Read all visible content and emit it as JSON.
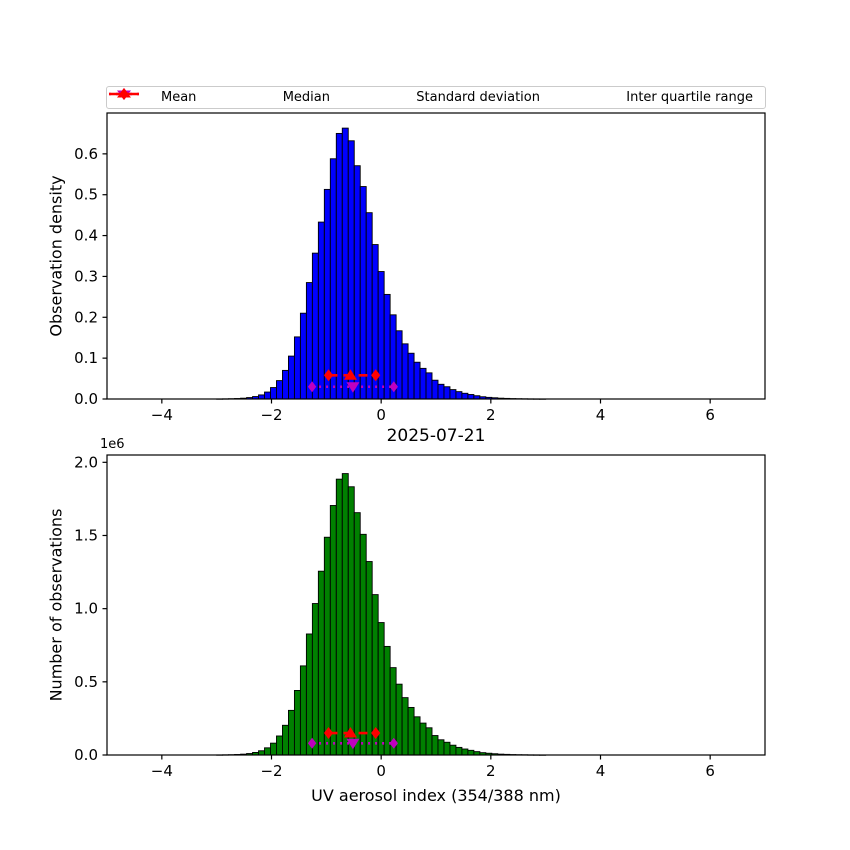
{
  "figure": {
    "title": "2025-07-21",
    "xlabel": "UV aerosol index (354/388 nm)",
    "background": "#ffffff"
  },
  "legend": {
    "items": [
      {
        "label": "Mean",
        "marker": "triangle-down",
        "color": "#BF00BF",
        "line": "none"
      },
      {
        "label": "Median",
        "marker": "triangle-up",
        "color": "#FF0000",
        "line": "none"
      },
      {
        "label": "Standard deviation",
        "marker": "diamond",
        "color": "#BF00BF",
        "line": "dotted"
      },
      {
        "label": "Inter quartile range",
        "marker": "diamond",
        "color": "#FF0000",
        "line": "solid"
      }
    ]
  },
  "stats": {
    "mean": -0.515,
    "std": 0.745,
    "median": -0.56,
    "q1": -0.96,
    "q3": -0.1
  },
  "chart_data": [
    {
      "type": "bar",
      "ylabel": "Observation density",
      "bar_color": "#0000FF",
      "bar_edge_color": "#000000",
      "xlim": [
        -5,
        7
      ],
      "ylim": [
        0,
        0.7
      ],
      "xticks": [
        -4,
        -2,
        0,
        2,
        4,
        6
      ],
      "xtick_labels": [
        "−4",
        "−2",
        "0",
        "2",
        "4",
        "6"
      ],
      "yticks": [
        0.0,
        0.1,
        0.2,
        0.3,
        0.4,
        0.5,
        0.6
      ],
      "ytick_labels": [
        "0.0",
        "0.1",
        "0.2",
        "0.3",
        "0.4",
        "0.5",
        "0.6"
      ],
      "bins": {
        "start": -3,
        "width": 0.109091,
        "count": 55
      },
      "values": [
        0.0002,
        0.0004,
        0.0007,
        0.0012,
        0.002,
        0.0035,
        0.006,
        0.01,
        0.017,
        0.028,
        0.045,
        0.07,
        0.105,
        0.152,
        0.21,
        0.285,
        0.357,
        0.433,
        0.513,
        0.588,
        0.65,
        0.663,
        0.632,
        0.571,
        0.52,
        0.456,
        0.378,
        0.312,
        0.256,
        0.206,
        0.167,
        0.135,
        0.112,
        0.09,
        0.075,
        0.064,
        0.046,
        0.036,
        0.03,
        0.023,
        0.018,
        0.014,
        0.011,
        0.008,
        0.0055,
        0.004,
        0.003,
        0.002,
        0.0015,
        0.001,
        0.0007,
        0.0005,
        0.0003,
        0.0002,
        0.0001
      ],
      "marker_rows": {
        "iqr_y": 0.058,
        "std_y": 0.03
      }
    },
    {
      "type": "bar",
      "ylabel": "Number of observations",
      "offset_label": "1e6",
      "bar_color": "#008000",
      "bar_edge_color": "#000000",
      "xlim": [
        -5,
        7
      ],
      "ylim": [
        0,
        2050000
      ],
      "xticks": [
        -4,
        -2,
        0,
        2,
        4,
        6
      ],
      "xtick_labels": [
        "−4",
        "−2",
        "0",
        "2",
        "4",
        "6"
      ],
      "yticks": [
        0,
        500000,
        1000000,
        1500000,
        2000000
      ],
      "ytick_labels": [
        "0.0",
        "0.5",
        "1.0",
        "1.5",
        "2.0"
      ],
      "bins": {
        "start": -3,
        "width": 0.109091,
        "count": 55
      },
      "values": [
        600,
        1200,
        2000,
        3500,
        5800,
        10000,
        17400,
        29000,
        49000,
        81000,
        130000,
        203000,
        305000,
        441000,
        609000,
        827000,
        1035000,
        1256000,
        1488000,
        1705000,
        1885000,
        1923000,
        1833000,
        1656000,
        1508000,
        1322000,
        1096000,
        905000,
        742000,
        597000,
        484000,
        392000,
        325000,
        261000,
        218000,
        186000,
        133000,
        104000,
        87000,
        67000,
        52000,
        41000,
        32000,
        23000,
        16000,
        12000,
        8700,
        5800,
        4400,
        2900,
        2000,
        1500,
        900,
        600,
        300
      ],
      "marker_rows": {
        "iqr_y": 150000,
        "std_y": 80000
      }
    }
  ],
  "colors": {
    "mean_marker": "#BF00BF",
    "median_marker": "#FF0000",
    "std_line": "#BF00BF",
    "iqr_line": "#FF0000"
  }
}
